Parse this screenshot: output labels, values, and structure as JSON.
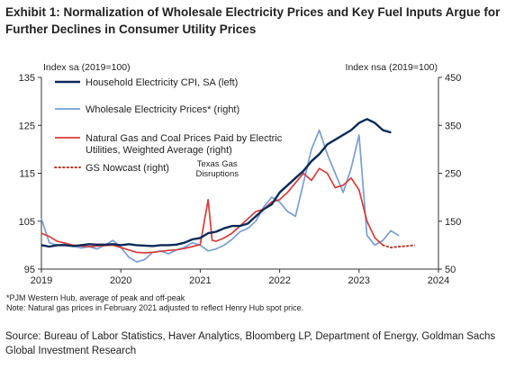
{
  "title": "Exhibit 1: Normalization of Wholesale Electricity Prices and Key Fuel Inputs Argue for Further Declines in Consumer Utility Prices",
  "source": "Source: Bureau of Labor Statistics, Haver Analytics, Bloomberg LP, Department of Energy, Goldman Sachs Global Investment Research",
  "footnotes": [
    "*PJM Western Hub, average of peak and off-peak",
    "Note: Natural gas prices in February 2021 adjusted to reflect Henry Hub spot price."
  ],
  "colors": {
    "cpi": "#0b2a57",
    "wholesale": "#7a9ed4",
    "gas_coal": "#d63c3c",
    "nowcast": "#c0392b"
  },
  "chart_data": {
    "type": "line",
    "left_axis": {
      "label": "Index sa (2019=100)",
      "ylim": [
        95,
        135
      ],
      "ticks": [
        95,
        105,
        115,
        125,
        135
      ]
    },
    "right_axis": {
      "label": "Index nsa (2019=100)",
      "ylim": [
        50,
        450
      ],
      "ticks": [
        50,
        150,
        250,
        350,
        450
      ]
    },
    "x_axis": {
      "xlim": [
        2019,
        2024
      ],
      "ticks": [
        "2019",
        "2020",
        "2021",
        "2022",
        "2023",
        "2024"
      ]
    },
    "annotations": [
      {
        "text": [
          "Texas Gas",
          "Disruptions"
        ],
        "x": 2021.1,
        "y_left": 116
      }
    ],
    "series": [
      {
        "name": "Household Electricity CPI, SA (left)",
        "key": "cpi",
        "axis": "left",
        "style": "solid",
        "x": [
          2019.0,
          2019.1,
          2019.2,
          2019.3,
          2019.4,
          2019.5,
          2019.6,
          2019.7,
          2019.8,
          2019.9,
          2020.0,
          2020.1,
          2020.2,
          2020.3,
          2020.4,
          2020.5,
          2020.6,
          2020.7,
          2020.8,
          2020.9,
          2021.0,
          2021.1,
          2021.2,
          2021.3,
          2021.4,
          2021.5,
          2021.6,
          2021.7,
          2021.8,
          2021.9,
          2022.0,
          2022.1,
          2022.2,
          2022.3,
          2022.4,
          2022.5,
          2022.6,
          2022.7,
          2022.8,
          2022.9,
          2023.0,
          2023.1,
          2023.2,
          2023.3,
          2023.4
        ],
        "values": [
          100,
          99.7,
          100,
          100,
          99.8,
          100,
          100.2,
          100.1,
          100.1,
          100.2,
          100,
          100.2,
          100,
          99.9,
          99.8,
          100,
          100,
          100.1,
          100.5,
          101.2,
          101.5,
          102.5,
          102.8,
          103.5,
          104,
          104,
          104.5,
          106,
          107.5,
          108.5,
          111,
          112.5,
          114,
          115.5,
          117.5,
          119,
          121,
          122,
          123,
          124,
          125.5,
          126.3,
          125.5,
          124,
          123.5
        ]
      },
      {
        "name": "Wholesale Electricity Prices* (right)",
        "key": "wholesale",
        "axis": "right",
        "style": "solid",
        "x": [
          2019.0,
          2019.1,
          2019.2,
          2019.3,
          2019.4,
          2019.5,
          2019.6,
          2019.7,
          2019.8,
          2019.9,
          2020.0,
          2020.1,
          2020.2,
          2020.3,
          2020.4,
          2020.5,
          2020.6,
          2020.7,
          2020.8,
          2020.9,
          2021.0,
          2021.1,
          2021.2,
          2021.3,
          2021.4,
          2021.5,
          2021.6,
          2021.7,
          2021.8,
          2021.9,
          2022.0,
          2022.1,
          2022.2,
          2022.3,
          2022.4,
          2022.5,
          2022.6,
          2022.7,
          2022.8,
          2022.9,
          2023.0,
          2023.1,
          2023.2,
          2023.3,
          2023.4,
          2023.5
        ],
        "values": [
          155,
          105,
          100,
          102,
          98,
          94,
          97,
          92,
          100,
          110,
          95,
          75,
          65,
          70,
          85,
          88,
          82,
          90,
          95,
          105,
          100,
          88,
          92,
          100,
          112,
          128,
          135,
          150,
          180,
          200,
          190,
          170,
          160,
          230,
          300,
          340,
          290,
          250,
          210,
          260,
          330,
          120,
          100,
          110,
          130,
          120
        ]
      },
      {
        "name": "Natural Gas and Coal Prices Paid by Electric Utilities, Weighted Average (right)",
        "key": "gas_coal",
        "axis": "right",
        "style": "solid",
        "x": [
          2019.0,
          2019.1,
          2019.2,
          2019.3,
          2019.4,
          2019.5,
          2019.6,
          2019.7,
          2019.8,
          2019.9,
          2020.0,
          2020.1,
          2020.2,
          2020.3,
          2020.4,
          2020.5,
          2020.6,
          2020.7,
          2020.8,
          2020.9,
          2021.0,
          2021.1,
          2021.15,
          2021.2,
          2021.3,
          2021.4,
          2021.5,
          2021.6,
          2021.7,
          2021.8,
          2021.9,
          2022.0,
          2022.1,
          2022.2,
          2022.3,
          2022.4,
          2022.5,
          2022.6,
          2022.7,
          2022.8,
          2022.9,
          2023.0,
          2023.1,
          2023.2,
          2023.3
        ],
        "values": [
          125,
          118,
          108,
          104,
          100,
          98,
          97,
          98,
          99,
          100,
          95,
          90,
          85,
          84,
          85,
          87,
          89,
          90,
          93,
          97,
          101,
          195,
          110,
          108,
          115,
          125,
          140,
          155,
          170,
          175,
          190,
          195,
          210,
          230,
          250,
          235,
          260,
          250,
          220,
          225,
          240,
          215,
          150,
          115,
          100
        ]
      },
      {
        "name": "GS Nowcast (right)",
        "key": "nowcast",
        "axis": "right",
        "style": "dotted",
        "x": [
          2023.3,
          2023.4,
          2023.5,
          2023.6,
          2023.7
        ],
        "values": [
          100,
          95,
          97,
          98,
          100
        ]
      }
    ]
  }
}
